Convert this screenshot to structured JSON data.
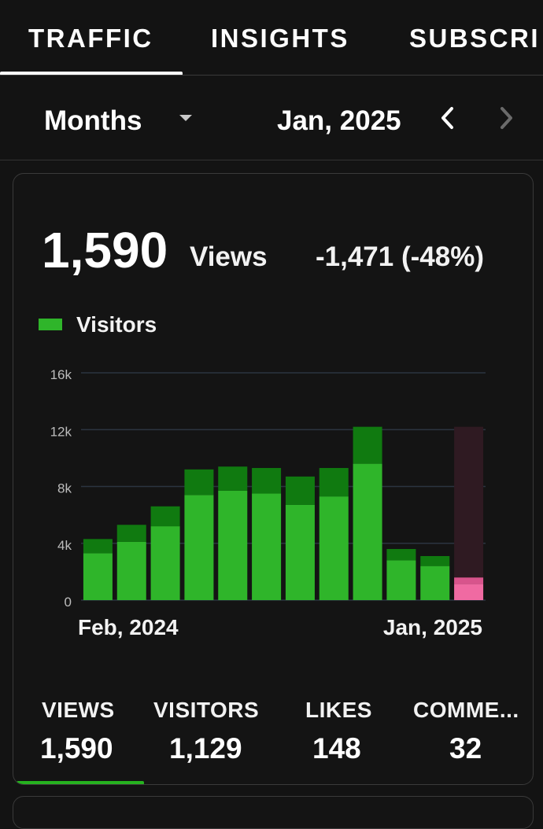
{
  "tabs": [
    {
      "label": "TRAFFIC",
      "active": true
    },
    {
      "label": "INSIGHTS",
      "active": false
    },
    {
      "label": "SUBSCRI",
      "active": false
    }
  ],
  "toolbar": {
    "period": "Months",
    "date": "Jan, 2025",
    "icons": [
      "dropdown-triangle",
      "chevron-left",
      "chevron-right"
    ]
  },
  "summary": {
    "total": "1,590",
    "metric": "Views",
    "change": "-1,471 (-48%)"
  },
  "legend": {
    "label": "Visitors",
    "color": "#2fb52a"
  },
  "chart_data": {
    "type": "bar",
    "stacked": true,
    "x_start_label": "Feb, 2024",
    "x_end_label": "Jan, 2025",
    "y_ticks": [
      "16k",
      "12k",
      "8k",
      "4k",
      "0"
    ],
    "ylim": [
      0,
      16000
    ],
    "series": [
      {
        "name": "Visitors",
        "color": "#2fb52a",
        "values": [
          3300,
          4100,
          5200,
          7400,
          7700,
          7500,
          6700,
          7300,
          9600,
          2800,
          2400,
          1129
        ]
      },
      {
        "color": "#107a10",
        "values": [
          1000,
          1200,
          1400,
          1800,
          1700,
          1800,
          2000,
          2000,
          2600,
          800,
          700,
          461
        ]
      }
    ],
    "highlight_index": 11,
    "highlight_colors": {
      "top": "#d8548c",
      "bottom": "#f06aa2",
      "background": "#2f1a22"
    }
  },
  "stats": [
    {
      "title": "VIEWS",
      "value": "1,590",
      "selected": true
    },
    {
      "title": "VISITORS",
      "value": "1,129"
    },
    {
      "title": "LIKES",
      "value": "148"
    },
    {
      "title": "COMME...",
      "value": "32"
    }
  ],
  "colors": {
    "background": "#131313",
    "accent": "#26b21f",
    "text": "#ffffff"
  }
}
